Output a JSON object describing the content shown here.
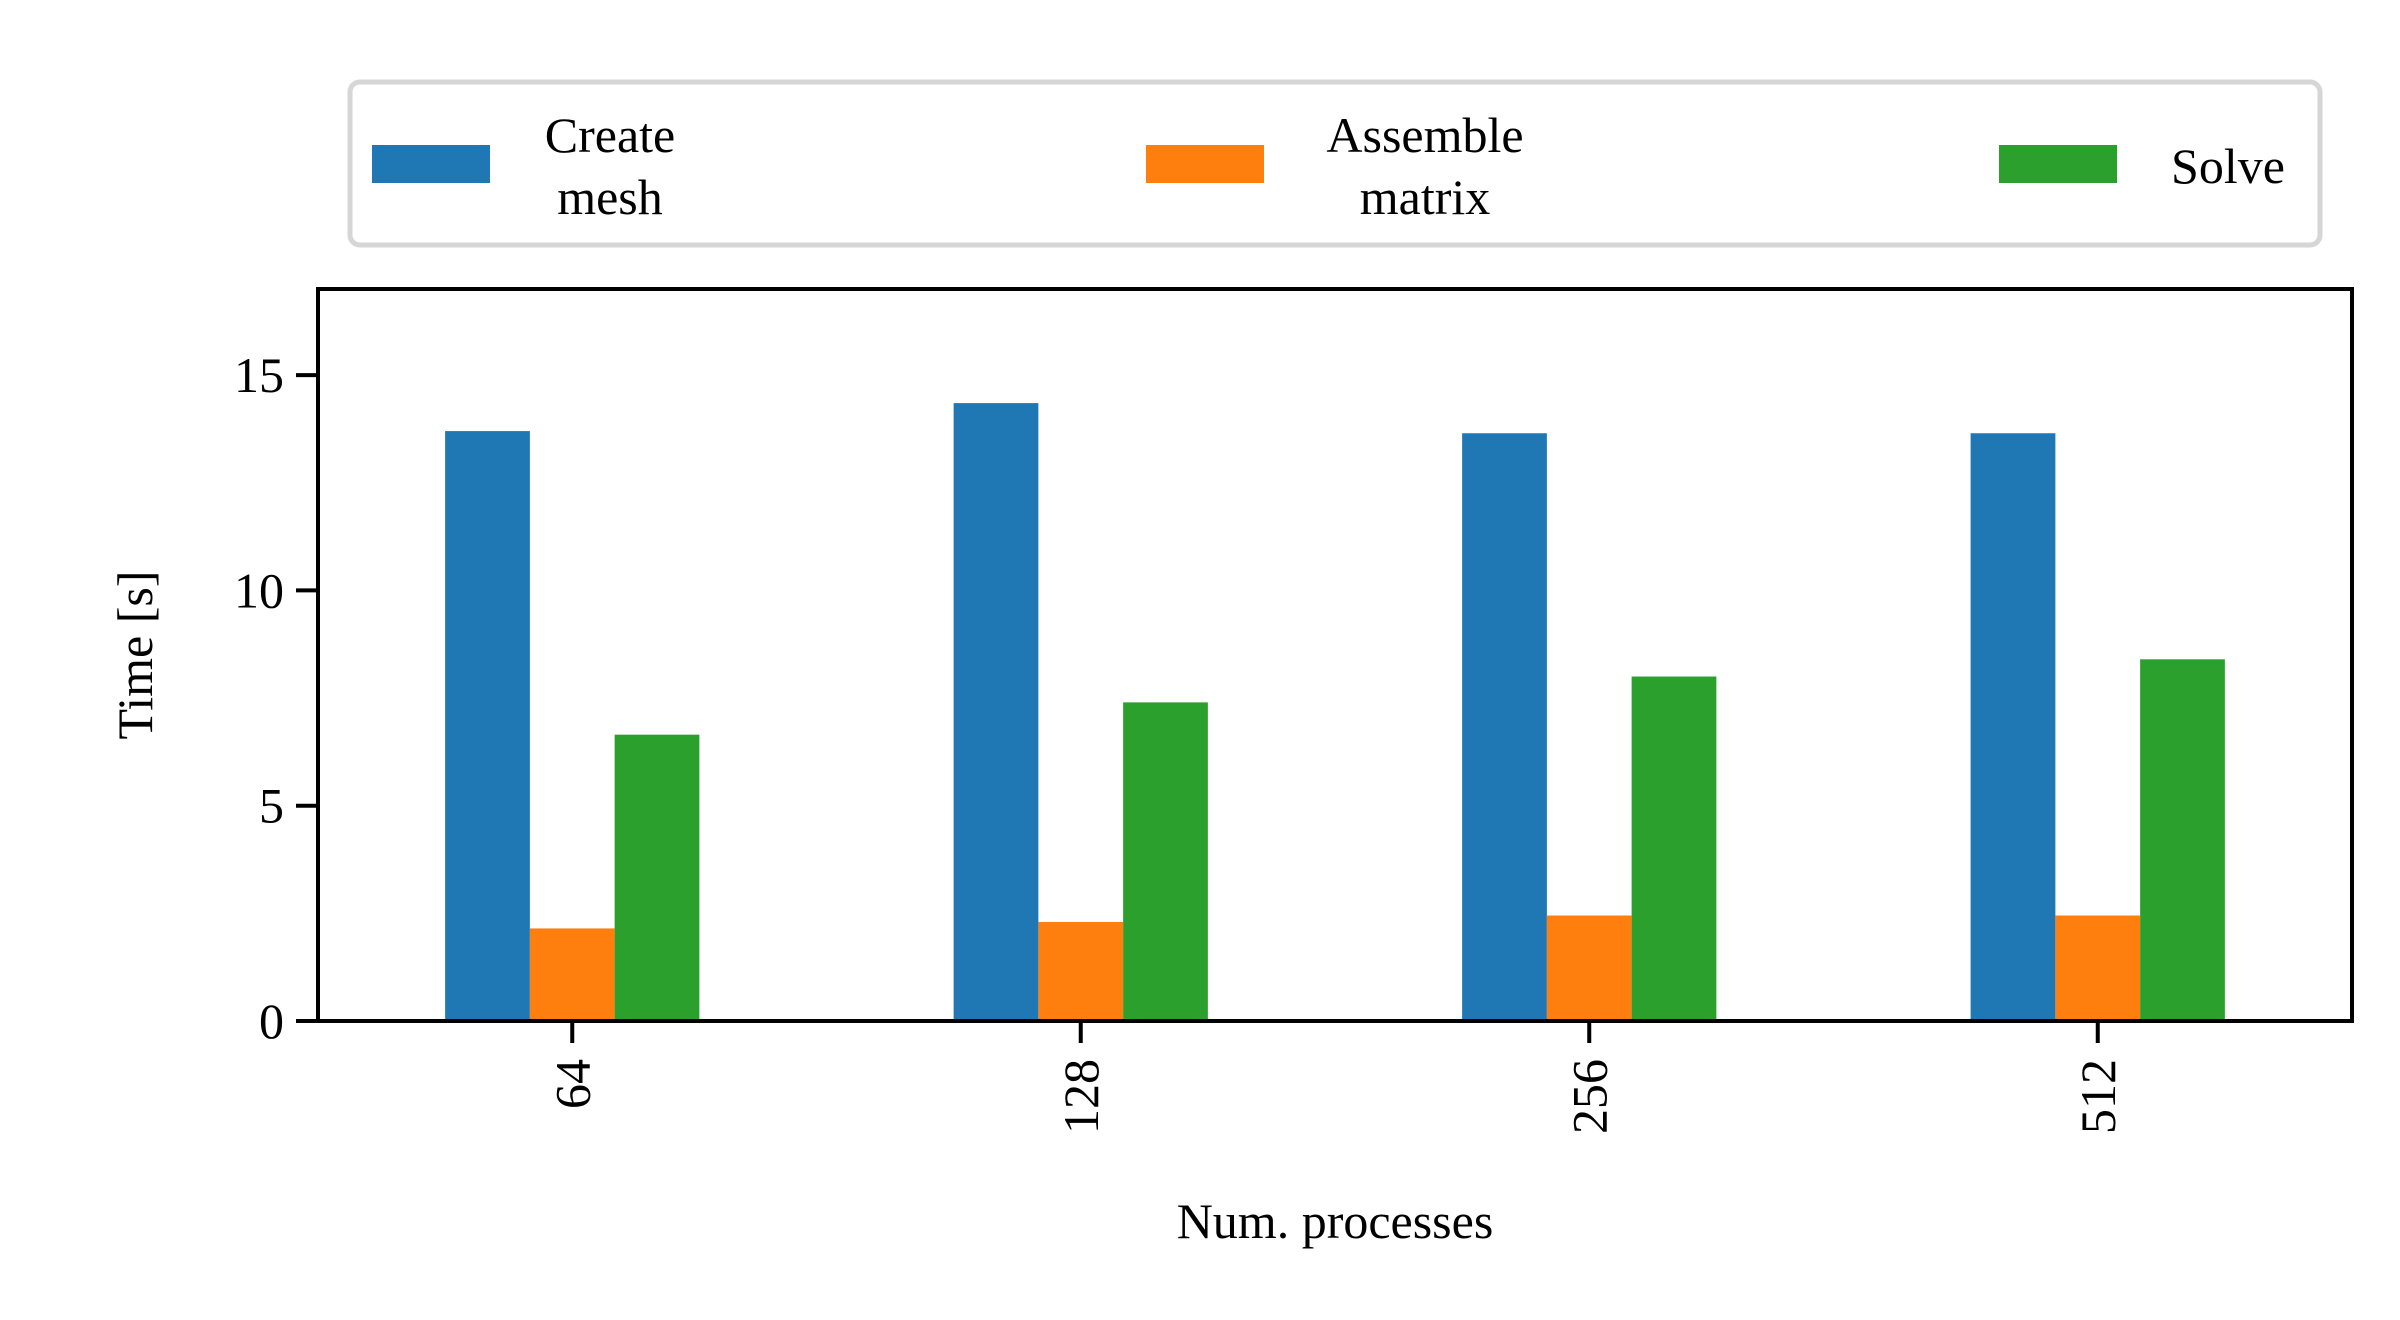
{
  "chart_data": {
    "type": "bar",
    "categories": [
      "64",
      "128",
      "256",
      "512"
    ],
    "series": [
      {
        "name": "Create\nmesh",
        "color": "#1f77b4",
        "values": [
          13.7,
          14.35,
          13.65,
          13.65
        ]
      },
      {
        "name": "Assemble\nmatrix",
        "color": "#ff7f0e",
        "values": [
          2.15,
          2.3,
          2.45,
          2.45
        ]
      },
      {
        "name": "Solve",
        "color": "#2ca02c",
        "values": [
          6.65,
          7.4,
          8.0,
          8.4
        ]
      }
    ],
    "xlabel": "Num. processes",
    "ylabel": "Time [s]",
    "ylim": [
      0,
      17
    ],
    "yticks": [
      0,
      5,
      10,
      15
    ],
    "xtick_rotation": 90,
    "grid": false,
    "legend": {
      "placement": "top",
      "columns": 3
    }
  }
}
